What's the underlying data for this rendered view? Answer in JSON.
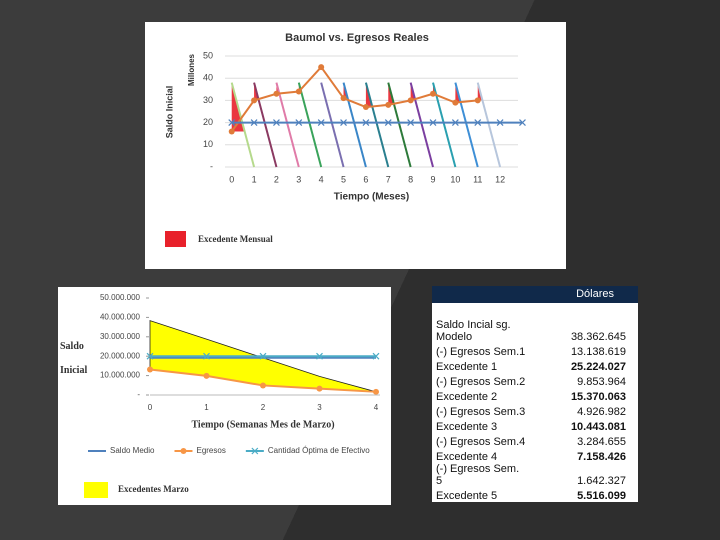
{
  "chart_data": [
    {
      "type": "line",
      "title": "Baumol vs. Egresos Reales",
      "ylabel": "Saldo Inicial",
      "yunit": "Millones",
      "xlabel": "Tiempo (Meses)",
      "xlim": [
        -0.3,
        12.8
      ],
      "xticks": [
        0,
        1,
        2,
        3,
        4,
        5,
        6,
        7,
        8,
        9,
        10,
        11,
        12
      ],
      "ylim": [
        0,
        50
      ],
      "yticks": [
        {
          "value": 0,
          "label": "-"
        },
        10,
        20,
        30,
        40,
        50
      ],
      "grid": true,
      "series": [
        {
          "color": "#b5d98c",
          "x": [
            0,
            1
          ],
          "values": [
            38,
            0
          ]
        },
        {
          "color": "#8b3a62",
          "x": [
            1,
            2
          ],
          "values": [
            38,
            0
          ]
        },
        {
          "color": "#e07ba8",
          "x": [
            2,
            3
          ],
          "values": [
            38,
            0
          ]
        },
        {
          "color": "#3aa35b",
          "x": [
            3,
            4
          ],
          "values": [
            38,
            0
          ]
        },
        {
          "color": "#7a6fb0",
          "x": [
            4,
            5
          ],
          "values": [
            38,
            0
          ]
        },
        {
          "color": "#3a86c8",
          "x": [
            5,
            6
          ],
          "values": [
            38,
            0
          ]
        },
        {
          "color": "#2a7f8f",
          "x": [
            6,
            7
          ],
          "values": [
            38,
            0
          ]
        },
        {
          "color": "#2d7a3a",
          "x": [
            7,
            8
          ],
          "values": [
            38,
            0
          ]
        },
        {
          "color": "#7b3fa0",
          "x": [
            8,
            9
          ],
          "values": [
            38,
            0
          ]
        },
        {
          "color": "#2aa0b0",
          "x": [
            9,
            10
          ],
          "values": [
            38,
            0
          ]
        },
        {
          "color": "#3e8fd6",
          "x": [
            10,
            11
          ],
          "values": [
            38,
            0
          ]
        },
        {
          "color": "#b7c6dc",
          "x": [
            11,
            12
          ],
          "values": [
            38,
            0
          ]
        },
        {
          "color": "#e07b39",
          "marker": "circle",
          "x": [
            0,
            1,
            2,
            3,
            4,
            5,
            6,
            7,
            8,
            9,
            10,
            11
          ],
          "values": [
            16,
            30,
            33,
            34,
            45,
            31,
            27,
            28,
            30,
            33,
            29,
            30
          ]
        },
        {
          "color": "#4f81bd",
          "marker": "x",
          "x": [
            0,
            1,
            2,
            3,
            4,
            5,
            6,
            7,
            8,
            9,
            10,
            11,
            12,
            13
          ],
          "values": [
            20,
            20,
            20,
            20,
            20,
            20,
            20,
            20,
            20,
            20,
            20,
            20,
            20,
            20
          ]
        }
      ],
      "excess_label": "Excedente Mensual",
      "excess_color": "#e8212b"
    },
    {
      "type": "line",
      "ylabel": "Saldo Inicial",
      "xlabel": "Tiempo (Semanas Mes de Marzo)",
      "x": [
        0,
        1,
        2,
        3,
        4
      ],
      "xlim": [
        0,
        4
      ],
      "xticks": [
        0,
        1,
        2,
        3,
        4
      ],
      "ylim": [
        0,
        50000000
      ],
      "yticks": [
        {
          "value": 0,
          "label": "-"
        },
        {
          "value": 10000000,
          "label": "10.000.000"
        },
        {
          "value": 20000000,
          "label": "20.000.000"
        },
        {
          "value": 30000000,
          "label": "30.000.000"
        },
        {
          "value": 40000000,
          "label": "40.000.000"
        },
        {
          "value": 50000000,
          "label": "50.000.000"
        }
      ],
      "series": [
        {
          "name": "Excedentes Marzo",
          "color": "#ffff00",
          "area": true,
          "values": [
            38362645,
            28772000,
            19181000,
            9590000,
            1642327
          ]
        },
        {
          "name": "Saldo Medio",
          "color": "#4f81bd",
          "values": [
            19181322,
            19181322,
            19181322,
            19181322,
            19181322
          ]
        },
        {
          "name": "Egresos",
          "color": "#f79646",
          "marker": "circle",
          "values": [
            13138619,
            9853964,
            4926982,
            3284655,
            1642327
          ]
        },
        {
          "name": "Cantidad Óptima de Efectivo",
          "color": "#4bacc6",
          "marker": "x",
          "values": [
            20000000,
            20000000,
            20000000,
            20000000,
            20000000
          ]
        }
      ]
    }
  ],
  "table": {
    "header": "Dólares",
    "rows": [
      [
        "Saldo Incial sg. Modelo",
        "38.362.645"
      ],
      [
        "(-) Egresos Sem.1",
        "13.138.619"
      ],
      [
        "Excedente 1",
        "25.224.027"
      ],
      [
        "(-) Egresos Sem.2",
        "9.853.964"
      ],
      [
        "Excedente 2",
        "15.370.063"
      ],
      [
        "(-) Egresos Sem.3",
        "4.926.982"
      ],
      [
        "Excedente 3",
        "10.443.081"
      ],
      [
        "(-) Egresos Sem.4",
        "3.284.655"
      ],
      [
        "Excedente 4",
        "7.158.426"
      ],
      [
        "(-) Egresos Sem. 5",
        "1.642.327"
      ],
      [
        "Excedente 5",
        "5.516.099"
      ]
    ]
  }
}
